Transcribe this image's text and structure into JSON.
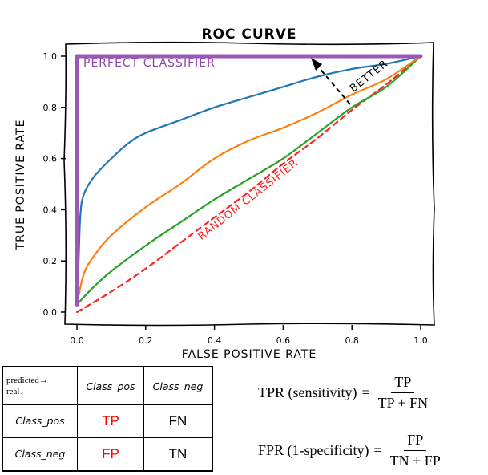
{
  "chart_data": {
    "type": "line",
    "title": "ROC CURVE",
    "xlabel": "FALSE POSITIVE RATE",
    "ylabel": "TRUE POSITIVE RATE",
    "xlim": [
      0,
      1
    ],
    "ylim": [
      0,
      1
    ],
    "x_ticks": [
      "0.0",
      "0.2",
      "0.4",
      "0.6",
      "0.8",
      "1.0"
    ],
    "y_ticks": [
      "0.0",
      "0.2",
      "0.4",
      "0.6",
      "0.8",
      "1.0"
    ],
    "annotations": {
      "perfect": "PERFECT CLASSIFIER",
      "random": "RANDOM CLASSIFIER",
      "better": "BETTER"
    },
    "series": [
      {
        "color": "#9b59b6",
        "points": [
          [
            0,
            0.03
          ],
          [
            0,
            1.0
          ],
          [
            1.0,
            1.0
          ]
        ]
      },
      {
        "color": "#1f77b4",
        "points": [
          [
            0,
            0.03
          ],
          [
            0.005,
            0.2
          ],
          [
            0.01,
            0.38
          ],
          [
            0.02,
            0.46
          ],
          [
            0.05,
            0.53
          ],
          [
            0.1,
            0.6
          ],
          [
            0.15,
            0.66
          ],
          [
            0.2,
            0.7
          ],
          [
            0.3,
            0.75
          ],
          [
            0.4,
            0.8
          ],
          [
            0.5,
            0.84
          ],
          [
            0.6,
            0.88
          ],
          [
            0.7,
            0.92
          ],
          [
            0.8,
            0.95
          ],
          [
            0.9,
            0.97
          ],
          [
            1.0,
            1.0
          ]
        ]
      },
      {
        "color": "#ff7f0e",
        "points": [
          [
            0,
            0.03
          ],
          [
            0.02,
            0.15
          ],
          [
            0.05,
            0.22
          ],
          [
            0.1,
            0.3
          ],
          [
            0.2,
            0.41
          ],
          [
            0.3,
            0.5
          ],
          [
            0.4,
            0.6
          ],
          [
            0.5,
            0.67
          ],
          [
            0.6,
            0.72
          ],
          [
            0.7,
            0.78
          ],
          [
            0.8,
            0.85
          ],
          [
            0.9,
            0.91
          ],
          [
            1.0,
            1.0
          ]
        ]
      },
      {
        "color": "#2ca02c",
        "points": [
          [
            0,
            0.03
          ],
          [
            0.05,
            0.1
          ],
          [
            0.1,
            0.16
          ],
          [
            0.2,
            0.26
          ],
          [
            0.3,
            0.35
          ],
          [
            0.4,
            0.44
          ],
          [
            0.5,
            0.52
          ],
          [
            0.6,
            0.6
          ],
          [
            0.7,
            0.7
          ],
          [
            0.8,
            0.8
          ],
          [
            0.9,
            0.88
          ],
          [
            1.0,
            1.0
          ]
        ]
      },
      {
        "color": "#ff2222",
        "dashed": true,
        "points": [
          [
            0,
            0.0
          ],
          [
            0.1,
            0.08
          ],
          [
            0.2,
            0.17
          ],
          [
            0.3,
            0.27
          ],
          [
            0.4,
            0.37
          ],
          [
            0.5,
            0.47
          ],
          [
            0.6,
            0.58
          ],
          [
            0.7,
            0.68
          ],
          [
            0.8,
            0.79
          ],
          [
            0.9,
            0.89
          ],
          [
            1.0,
            1.0
          ]
        ]
      }
    ]
  },
  "matrix": {
    "corner_line1": "predicted",
    "corner_line2": "real",
    "col_headers": [
      "Class_pos",
      "Class_neg"
    ],
    "rows": [
      {
        "header": "Class_pos",
        "cells": [
          "TP",
          "FN"
        ],
        "colors": [
          "#ff0000",
          "#000000"
        ]
      },
      {
        "header": "Class_neg",
        "cells": [
          "FP",
          "TN"
        ],
        "colors": [
          "#ff0000",
          "#000000"
        ]
      }
    ]
  },
  "formulas": {
    "tpr": {
      "lhs": "TPR (sensitivity)",
      "eq": "=",
      "num": "TP",
      "den": "TP + FN"
    },
    "fpr": {
      "lhs": "FPR (1-specificity)",
      "eq": "=",
      "num": "FP",
      "den": "TN + FP"
    }
  }
}
